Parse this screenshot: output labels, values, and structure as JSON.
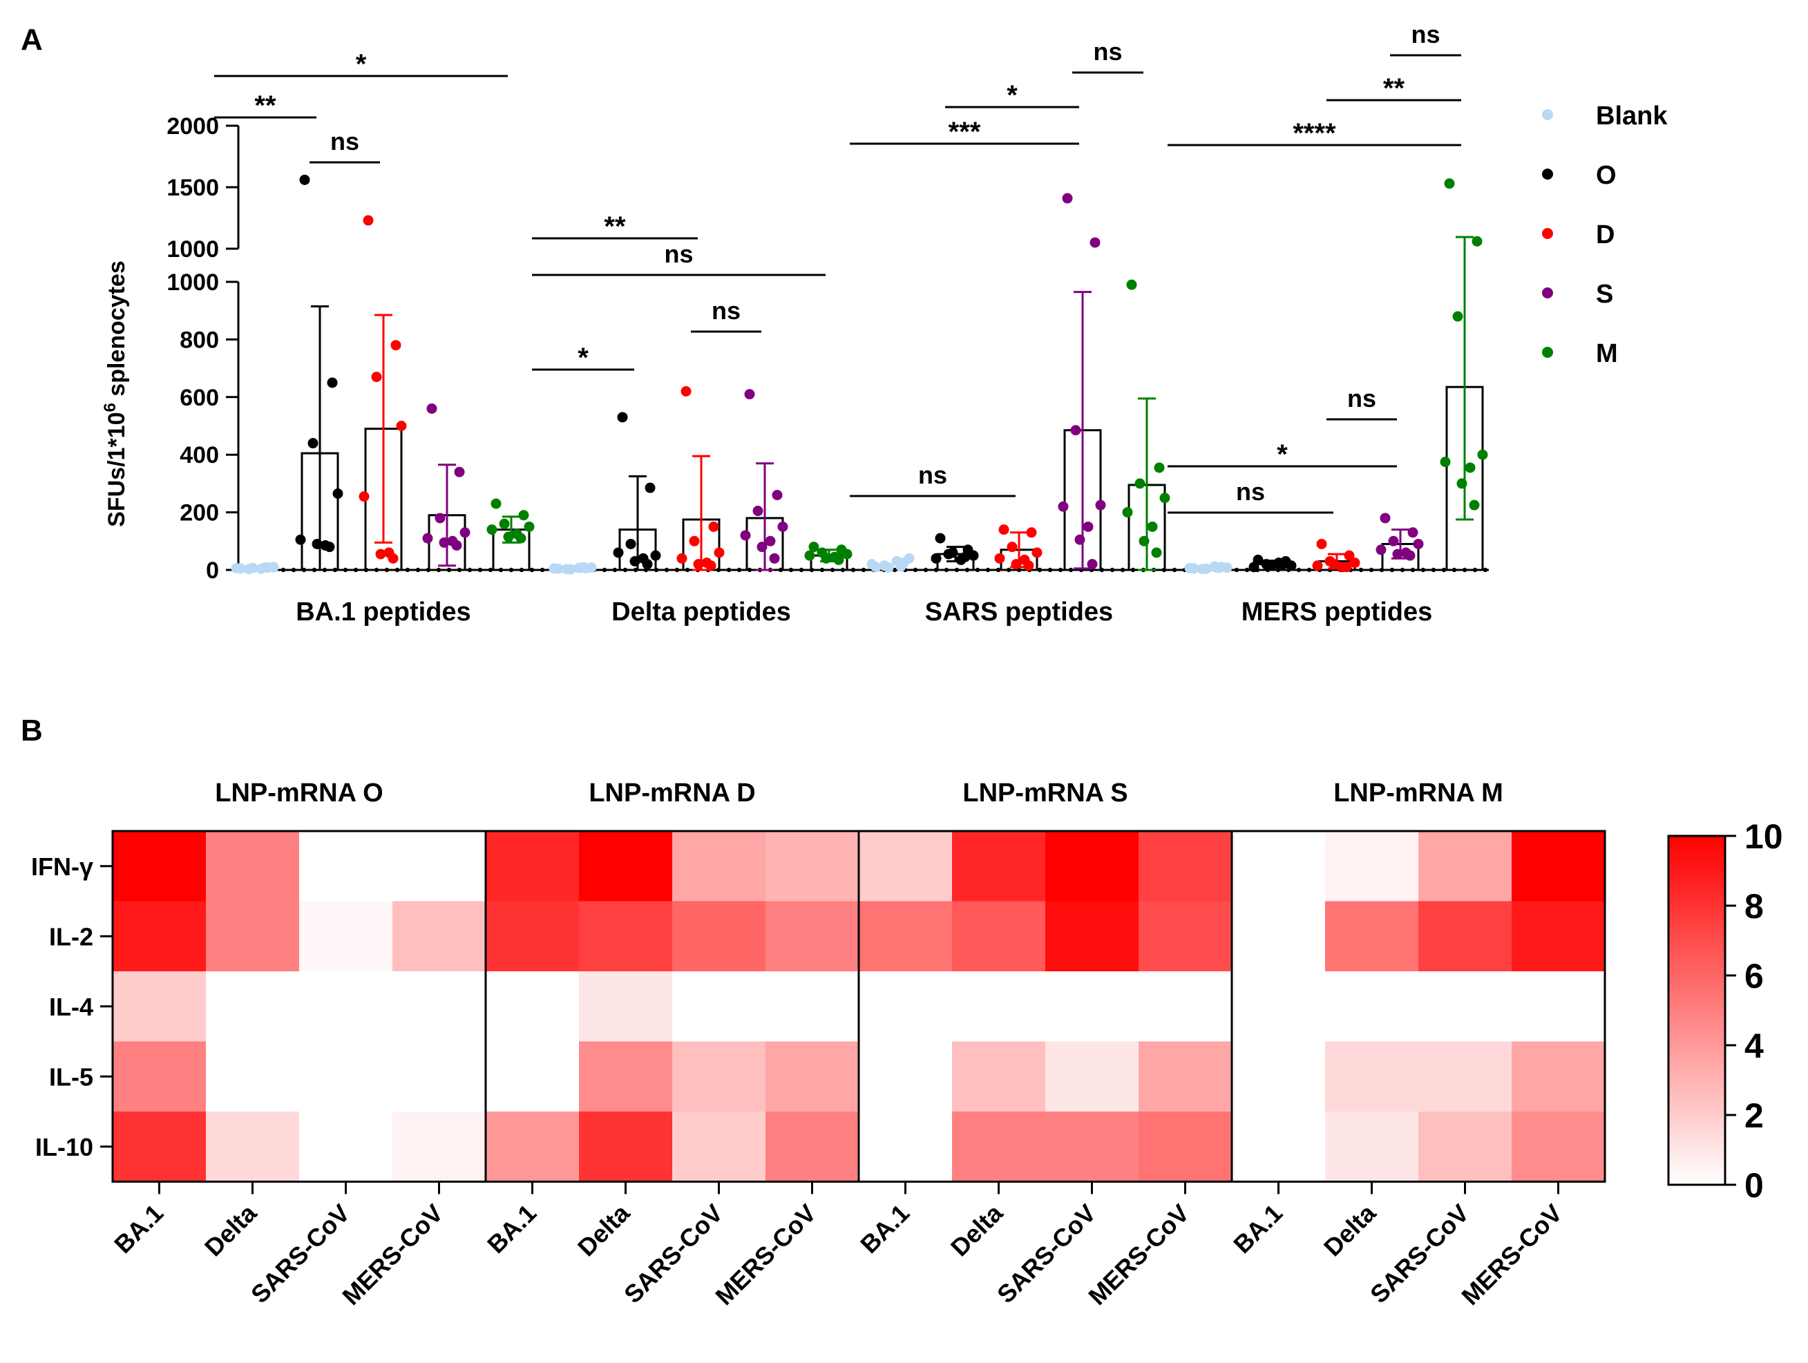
{
  "panelA": {
    "label": "A"
  },
  "panelB": {
    "label": "B"
  },
  "chart_data": [
    {
      "type": "bar",
      "subtype": "bar-with-scatter-and-error-bars, broken y-axis",
      "ylabel_base": "SFUs/1*10",
      "ylabel_sup": "6",
      "ylabel_tail": " splenocytes",
      "y_lower_ticks": [
        "0",
        "200",
        "400",
        "600",
        "800",
        "1000"
      ],
      "y_upper_ticks": [
        "1000",
        "1500",
        "2000"
      ],
      "ylim_lower": [
        0,
        1000
      ],
      "ylim_upper": [
        1000,
        2000
      ],
      "categories": [
        "BA.1 peptides",
        "Delta peptides",
        "SARS peptides",
        "MERS peptides"
      ],
      "legend_position": "top-right",
      "series": [
        {
          "name": "Blank",
          "color": "#b7d9f5",
          "means": [
            0,
            0,
            0,
            0
          ],
          "errors": [
            0,
            0,
            0,
            0
          ],
          "points": [
            [
              5,
              8,
              3,
              10,
              6,
              4,
              7,
              9
            ],
            [
              4,
              6,
              3,
              8,
              5,
              7,
              2,
              9
            ],
            [
              10,
              25,
              15,
              40,
              20,
              30,
              8,
              12
            ],
            [
              5,
              10,
              3,
              8,
              6,
              12,
              4,
              7
            ]
          ]
        },
        {
          "name": "O",
          "color": "#000000",
          "means": [
            405,
            140,
            55,
            20
          ],
          "errors": [
            510,
            185,
            25,
            12
          ],
          "points": [
            [
              1560,
              650,
              440,
              265,
              105,
              85,
              90,
              80
            ],
            [
              530,
              285,
              90,
              50,
              60,
              40,
              30,
              20
            ],
            [
              110,
              70,
              55,
              50,
              40,
              35,
              60,
              45
            ],
            [
              35,
              30,
              20,
              15,
              10,
              25,
              15,
              20
            ]
          ]
        },
        {
          "name": "D",
          "color": "#ff0000",
          "means": [
            490,
            175,
            70,
            30
          ],
          "errors": [
            395,
            220,
            60,
            25
          ],
          "points": [
            [
              1230,
              780,
              670,
              500,
              255,
              60,
              55,
              40
            ],
            [
              620,
              150,
              100,
              60,
              40,
              25,
              20,
              15
            ],
            [
              140,
              130,
              80,
              60,
              40,
              35,
              20,
              15
            ],
            [
              90,
              50,
              30,
              25,
              15,
              10,
              20,
              10
            ]
          ]
        },
        {
          "name": "S",
          "color": "#800080",
          "means": [
            190,
            180,
            485,
            90
          ],
          "errors": [
            175,
            190,
            480,
            50
          ],
          "points": [
            [
              560,
              340,
              180,
              130,
              110,
              100,
              95,
              85
            ],
            [
              610,
              260,
              205,
              150,
              120,
              100,
              80,
              40
            ],
            [
              1410,
              1050,
              485,
              225,
              220,
              150,
              105,
              20
            ],
            [
              180,
              130,
              100,
              90,
              70,
              60,
              55,
              50
            ]
          ]
        },
        {
          "name": "M",
          "color": "#008000",
          "means": [
            140,
            50,
            295,
            635
          ],
          "errors": [
            45,
            20,
            300,
            460
          ],
          "points": [
            [
              230,
              190,
              160,
              150,
              140,
              125,
              115,
              110
            ],
            [
              80,
              70,
              60,
              55,
              50,
              45,
              40,
              35
            ],
            [
              990,
              355,
              300,
              250,
              200,
              150,
              100,
              60
            ],
            [
              1530,
              1060,
              880,
              400,
              375,
              355,
              300,
              225
            ]
          ]
        }
      ],
      "significance": [
        {
          "group": "BA.1 peptides",
          "label": "**",
          "from": "Blank",
          "to": "O"
        },
        {
          "group": "BA.1 peptides",
          "label": "*",
          "from": "Blank",
          "to": "M"
        },
        {
          "group": "BA.1 peptides",
          "label": "ns",
          "from": "O",
          "to": "D"
        },
        {
          "group": "Delta peptides",
          "label": "ns",
          "from": "Blank",
          "to": "M"
        },
        {
          "group": "Delta peptides",
          "label": "**",
          "from": "Blank",
          "to": "D"
        },
        {
          "group": "Delta peptides",
          "label": "*",
          "from": "Blank",
          "to": "O"
        },
        {
          "group": "Delta peptides",
          "label": "ns",
          "from": "D",
          "to": "S"
        },
        {
          "group": "SARS peptides",
          "label": "ns",
          "from": "Blank",
          "to": "D"
        },
        {
          "group": "SARS peptides",
          "label": "***",
          "from": "Blank",
          "to": "S"
        },
        {
          "group": "SARS peptides",
          "label": "*",
          "from": "O",
          "to": "S"
        },
        {
          "group": "SARS peptides",
          "label": "ns",
          "from": "S",
          "to": "M"
        },
        {
          "group": "MERS peptides",
          "label": "ns",
          "from": "Blank",
          "to": "D"
        },
        {
          "group": "MERS peptides",
          "label": "*",
          "from": "Blank",
          "to": "S"
        },
        {
          "group": "MERS peptides",
          "label": "ns",
          "from": "D",
          "to": "S"
        },
        {
          "group": "MERS peptides",
          "label": "****",
          "from": "Blank",
          "to": "M"
        },
        {
          "group": "MERS peptides",
          "label": "**",
          "from": "D",
          "to": "M"
        },
        {
          "group": "MERS peptides",
          "label": "ns",
          "from": "S",
          "to": "M"
        }
      ]
    },
    {
      "type": "heatmap",
      "groups": [
        "LNP-mRNA O",
        "LNP-mRNA D",
        "LNP-mRNA S",
        "LNP-mRNA M"
      ],
      "columns": [
        "BA.1",
        "Delta",
        "SARS-CoV",
        "MERS-CoV"
      ],
      "rows": [
        "IFN-γ",
        "IL-2",
        "IL-4",
        "IL-5",
        "IL-10"
      ],
      "values": [
        [
          10,
          5,
          0,
          0,
          8.5,
          10,
          3.5,
          3,
          2,
          8.5,
          10,
          7.5,
          0,
          0.5,
          3.5,
          10
        ],
        [
          9,
          5,
          0.3,
          2.5,
          8,
          7.5,
          6,
          5,
          5.5,
          6.5,
          9.5,
          7,
          0,
          5.5,
          7.5,
          9
        ],
        [
          2,
          0,
          0,
          0,
          0,
          1,
          0,
          0,
          0,
          0,
          0,
          0,
          0,
          0,
          0,
          0
        ],
        [
          5,
          0,
          0,
          0,
          0,
          4.5,
          2.5,
          3.5,
          0,
          2.5,
          1,
          3.5,
          0,
          1.5,
          1.5,
          3.5
        ],
        [
          8,
          1.5,
          0,
          0.5,
          4,
          8,
          2,
          5,
          0,
          5,
          5,
          5.5,
          0,
          1,
          2.5,
          4.5
        ]
      ],
      "colorbar_ticks": [
        "0",
        "2",
        "4",
        "6",
        "8",
        "10"
      ],
      "vmin": 0,
      "vmax": 10,
      "color_low": "#ffffff",
      "color_high": "#ff0000"
    }
  ]
}
